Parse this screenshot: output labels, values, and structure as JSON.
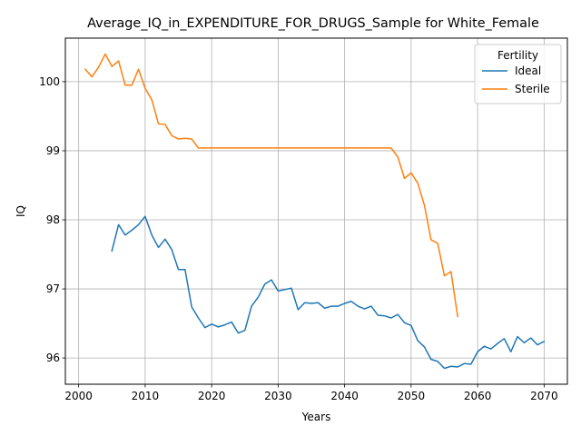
{
  "chart_data": {
    "type": "line",
    "title": "Average_IQ_in_EXPENDITURE_FOR_DRUGS_Sample for White_Female",
    "xlabel": "Years",
    "ylabel": "IQ",
    "xlim": [
      1998,
      2073.5
    ],
    "ylim": [
      95.62,
      100.63
    ],
    "x_ticks": [
      2000,
      2010,
      2020,
      2030,
      2040,
      2050,
      2060,
      2070
    ],
    "y_ticks": [
      96,
      97,
      98,
      99,
      100
    ],
    "grid": true,
    "legend": {
      "title": "Fertility",
      "placement": "top-right"
    },
    "series": [
      {
        "name": "Ideal",
        "color": "#1f77b4",
        "x": [
          2005,
          2006,
          2007,
          2008,
          2009,
          2010,
          2011,
          2012,
          2013,
          2014,
          2015,
          2016,
          2017,
          2018,
          2019,
          2020,
          2021,
          2022,
          2023,
          2024,
          2025,
          2026,
          2027,
          2028,
          2029,
          2030,
          2031,
          2032,
          2033,
          2034,
          2035,
          2036,
          2037,
          2038,
          2039,
          2040,
          2041,
          2042,
          2043,
          2044,
          2045,
          2046,
          2047,
          2048,
          2049,
          2050,
          2051,
          2052,
          2053,
          2054,
          2055,
          2056,
          2057,
          2058,
          2059,
          2060,
          2061,
          2062,
          2063,
          2064,
          2065,
          2066,
          2067,
          2068,
          2069,
          2070
        ],
        "values": [
          97.55,
          97.93,
          97.78,
          97.85,
          97.93,
          98.05,
          97.78,
          97.6,
          97.72,
          97.57,
          97.28,
          97.28,
          96.74,
          96.58,
          96.44,
          96.49,
          96.45,
          96.48,
          96.52,
          96.36,
          96.4,
          96.75,
          96.88,
          97.07,
          97.13,
          96.97,
          96.99,
          97.01,
          96.7,
          96.8,
          96.79,
          96.8,
          96.72,
          96.75,
          96.75,
          96.79,
          96.82,
          96.75,
          96.71,
          96.75,
          96.62,
          96.61,
          96.58,
          96.63,
          96.51,
          96.47,
          96.25,
          96.16,
          95.98,
          95.95,
          95.85,
          95.88,
          95.87,
          95.92,
          95.91,
          96.09,
          96.17,
          96.13,
          96.21,
          96.28,
          96.09,
          96.31,
          96.22,
          96.29,
          96.19,
          96.24
        ]
      },
      {
        "name": "Sterile",
        "color": "#ff7f0e",
        "x": [
          2001,
          2002,
          2003,
          2004,
          2005,
          2006,
          2007,
          2008,
          2009,
          2010,
          2011,
          2012,
          2013,
          2014,
          2015,
          2016,
          2017,
          2018,
          2019,
          2020,
          2021,
          2022,
          2023,
          2024,
          2025,
          2026,
          2027,
          2028,
          2029,
          2030,
          2031,
          2032,
          2033,
          2034,
          2035,
          2036,
          2037,
          2038,
          2039,
          2040,
          2041,
          2042,
          2043,
          2044,
          2045,
          2046,
          2047,
          2048,
          2049,
          2050,
          2051,
          2052,
          2053,
          2054,
          2055,
          2056,
          2057
        ],
        "values": [
          100.18,
          100.07,
          100.21,
          100.4,
          100.22,
          100.3,
          99.95,
          99.95,
          100.18,
          99.9,
          99.74,
          99.39,
          99.38,
          99.22,
          99.17,
          99.18,
          99.17,
          99.04,
          99.04,
          99.04,
          99.04,
          99.04,
          99.04,
          99.04,
          99.04,
          99.04,
          99.04,
          99.04,
          99.04,
          99.04,
          99.04,
          99.04,
          99.04,
          99.04,
          99.04,
          99.04,
          99.04,
          99.04,
          99.04,
          99.04,
          99.04,
          99.04,
          99.04,
          99.04,
          99.04,
          99.04,
          99.04,
          98.91,
          98.6,
          98.68,
          98.53,
          98.21,
          97.71,
          97.66,
          97.19,
          97.25,
          96.6
        ]
      }
    ]
  }
}
